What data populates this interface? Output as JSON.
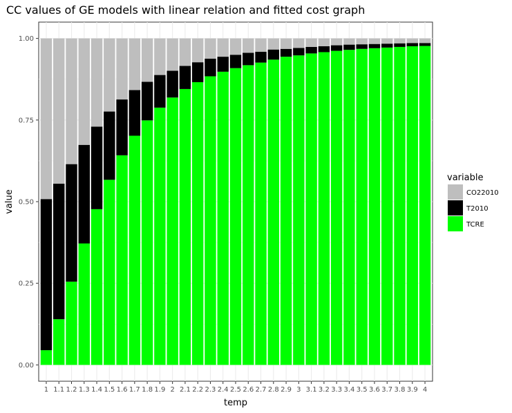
{
  "chart_data": {
    "type": "bar",
    "stacked": true,
    "title": "CC values of GE models with linear relation and fitted cost graph",
    "xlabel": "temp",
    "ylabel": "value",
    "ylim": [
      0,
      1
    ],
    "yticks": [
      "0.00",
      "0.25",
      "0.50",
      "0.75",
      "1.00"
    ],
    "grid": true,
    "legend": {
      "title": "variable",
      "position": "right"
    },
    "categories": [
      "1",
      "1.1",
      "1.2",
      "1.3",
      "1.4",
      "1.5",
      "1.6",
      "1.7",
      "1.8",
      "1.9",
      "2",
      "2.1",
      "2.2",
      "2.3",
      "2.4",
      "2.5",
      "2.6",
      "2.7",
      "2.8",
      "2.9",
      "3",
      "3.1",
      "3.2",
      "3.3",
      "3.4",
      "3.5",
      "3.6",
      "3.7",
      "3.8",
      "3.9",
      "4"
    ],
    "series": [
      {
        "name": "TCRE",
        "color": "#00ff00",
        "values": [
          0.045,
          0.14,
          0.255,
          0.372,
          0.477,
          0.567,
          0.642,
          0.702,
          0.749,
          0.788,
          0.819,
          0.845,
          0.866,
          0.884,
          0.898,
          0.909,
          0.918,
          0.926,
          0.935,
          0.944,
          0.948,
          0.954,
          0.958,
          0.962,
          0.965,
          0.968,
          0.97,
          0.972,
          0.974,
          0.976,
          0.977
        ]
      },
      {
        "name": "T2010",
        "color": "#000000",
        "values": [
          0.463,
          0.415,
          0.36,
          0.302,
          0.253,
          0.209,
          0.171,
          0.14,
          0.118,
          0.1,
          0.082,
          0.071,
          0.061,
          0.054,
          0.046,
          0.041,
          0.038,
          0.033,
          0.031,
          0.024,
          0.023,
          0.02,
          0.018,
          0.017,
          0.016,
          0.014,
          0.013,
          0.012,
          0.011,
          0.01,
          0.009
        ]
      },
      {
        "name": "CO22010",
        "color": "#bebebe",
        "values": [
          0.492,
          0.445,
          0.385,
          0.326,
          0.27,
          0.224,
          0.187,
          0.158,
          0.133,
          0.112,
          0.099,
          0.084,
          0.073,
          0.062,
          0.056,
          0.05,
          0.044,
          0.041,
          0.034,
          0.032,
          0.029,
          0.026,
          0.024,
          0.021,
          0.019,
          0.018,
          0.017,
          0.016,
          0.015,
          0.014,
          0.014
        ]
      }
    ]
  }
}
